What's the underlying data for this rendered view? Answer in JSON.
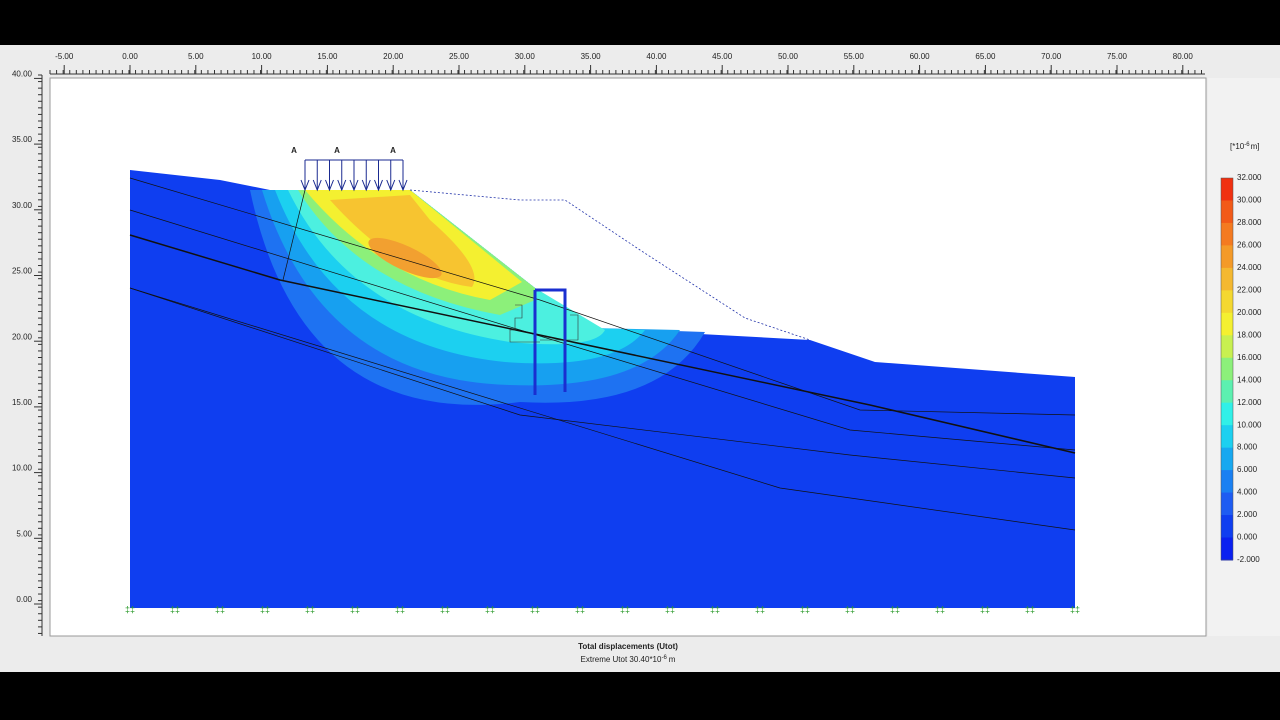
{
  "ruler": {
    "x_labels": [
      "-5.00",
      "0.00",
      "5.00",
      "10.00",
      "15.00",
      "20.00",
      "25.00",
      "30.00",
      "35.00",
      "40.00",
      "45.00",
      "50.00",
      "55.00",
      "60.00",
      "65.00",
      "70.00",
      "75.00",
      "80.00"
    ],
    "y_labels": [
      "0.00",
      "5.00",
      "10.00",
      "15.00",
      "20.00",
      "25.00",
      "30.00",
      "35.00",
      "40.00"
    ]
  },
  "plot": {
    "load_labels": [
      "A",
      "A",
      "A"
    ]
  },
  "legend": {
    "unit_prefix": "[*10",
    "unit_exponent": "-6",
    "unit_suffix": "m]",
    "labels": [
      "32.000",
      "30.000",
      "28.000",
      "26.000",
      "24.000",
      "22.000",
      "20.000",
      "18.000",
      "16.000",
      "14.000",
      "12.000",
      "10.000",
      "8.000",
      "6.000",
      "4.000",
      "2.000",
      "0.000",
      "-2.000"
    ]
  },
  "caption": {
    "title": "Total displacements (Utot)",
    "extreme_prefix": "Extreme Utot 30.40*10",
    "extreme_exponent": "-6",
    "extreme_suffix": "m"
  }
}
